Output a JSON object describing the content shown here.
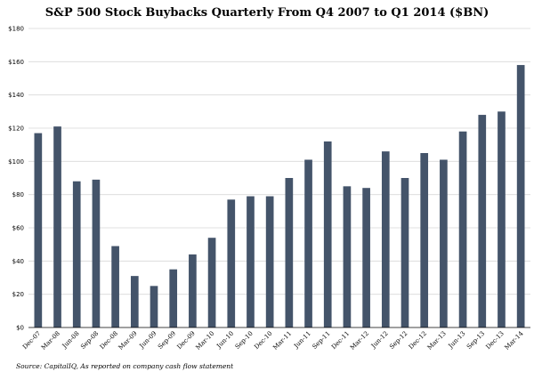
{
  "chart_data": {
    "type": "bar",
    "title": "S&P 500 Stock Buybacks Quarterly From Q4 2007 to Q1 2014 ($BN)",
    "xlabel": "",
    "ylabel": "",
    "categories": [
      "Dec-07",
      "Mar-08",
      "Jun-08",
      "Sep-08",
      "Dec-08",
      "Mar-09",
      "Jun-09",
      "Sep-09",
      "Dec-09",
      "Mar-10",
      "Jun-10",
      "Sep-10",
      "Dec-10",
      "Mar-11",
      "Jun-11",
      "Sep-11",
      "Dec-11",
      "Mar-12",
      "Jun-12",
      "Sep-12",
      "Dec-12",
      "Mar-13",
      "Jun-13",
      "Sep-13",
      "Dec-13",
      "Mar-14"
    ],
    "values": [
      117,
      121,
      88,
      89,
      49,
      31,
      25,
      35,
      44,
      54,
      77,
      79,
      79,
      90,
      101,
      112,
      85,
      84,
      106,
      90,
      105,
      101,
      118,
      128,
      130,
      158
    ],
    "ylim": [
      0,
      180
    ],
    "yticks": [
      "$0",
      "$20",
      "$40",
      "$60",
      "$80",
      "$100",
      "$120",
      "$140",
      "$160",
      "$180"
    ],
    "ytick_values": [
      0,
      20,
      40,
      60,
      80,
      100,
      120,
      140,
      160,
      180
    ],
    "grid": true,
    "legend": "none",
    "bar_color": "#44546a",
    "source": "Source: CapitalIQ, As reported on company cash flow statement"
  }
}
